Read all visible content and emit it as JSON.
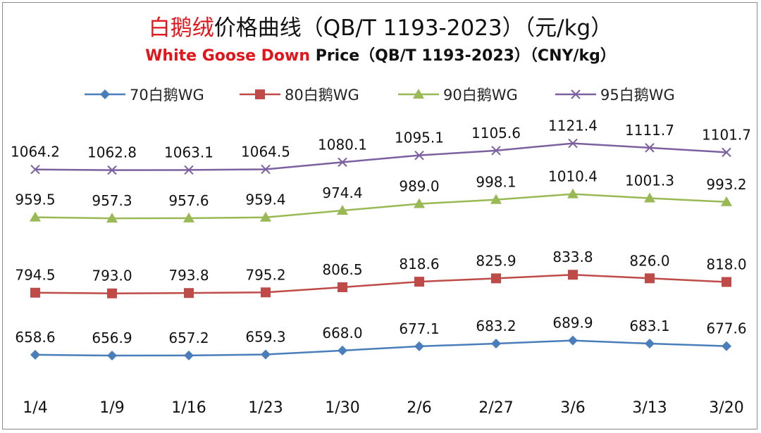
{
  "chart_data": {
    "type": "line",
    "title": {
      "highlight": "白鹅绒",
      "rest": "价格曲线（QB/T 1193-2023）（元/kg）"
    },
    "subtitle": {
      "highlight": "White Goose Down",
      "rest": " Price（QB/T 1193-2023）（CNY/kg）"
    },
    "categories": [
      "1/4",
      "1/9",
      "1/16",
      "1/23",
      "1/30",
      "2/6",
      "2/27",
      "3/6",
      "3/13",
      "3/20"
    ],
    "series": [
      {
        "name": "70白鹅WG",
        "color": "#4a7ebb",
        "marker": "diamond",
        "values": [
          658.6,
          656.9,
          657.2,
          659.3,
          668.0,
          677.1,
          683.2,
          689.9,
          683.1,
          677.6
        ]
      },
      {
        "name": "80白鹅WG",
        "color": "#be4b48",
        "marker": "square",
        "values": [
          794.5,
          793.0,
          793.8,
          795.2,
          806.5,
          818.6,
          825.9,
          833.8,
          826.0,
          818.0
        ]
      },
      {
        "name": "90白鹅WG",
        "color": "#98b954",
        "marker": "triangle",
        "values": [
          959.5,
          957.3,
          957.6,
          959.4,
          974.4,
          989.0,
          998.1,
          1010.4,
          1001.3,
          993.2
        ]
      },
      {
        "name": "95白鹅WG",
        "color": "#7d60a0",
        "marker": "x",
        "values": [
          1064.2,
          1062.8,
          1063.1,
          1064.5,
          1080.1,
          1095.1,
          1105.6,
          1121.4,
          1111.7,
          1101.7
        ]
      }
    ],
    "legend": "top",
    "grid": false
  }
}
